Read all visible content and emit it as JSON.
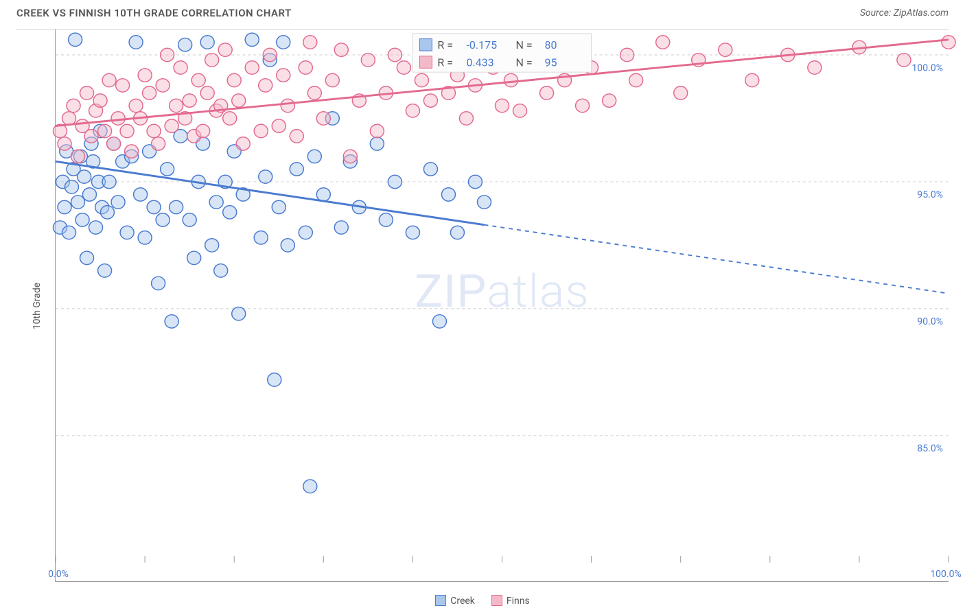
{
  "title": "CREEK VS FINNISH 10TH GRADE CORRELATION CHART",
  "source": "Source: ZipAtlas.com",
  "yaxis_label": "10th Grade",
  "watermark_a": "ZIP",
  "watermark_b": "atlas",
  "chart": {
    "type": "scatter",
    "background_color": "#ffffff",
    "grid_color": "#cccccc",
    "axis_color": "#999999",
    "label_color": "#4a7bd0",
    "xlim": [
      0,
      100
    ],
    "ylim": [
      80,
      101
    ],
    "ytick_step": 5,
    "ytick_labels": [
      "85.0%",
      "90.0%",
      "95.0%",
      "100.0%"
    ],
    "ytick_values": [
      85,
      90,
      95,
      100
    ],
    "xtick_values": [
      0,
      10,
      20,
      30,
      40,
      50,
      60,
      70,
      80,
      90,
      100
    ],
    "xtick_labels_shown": {
      "0": "0.0%",
      "100": "100.0%"
    },
    "marker_radius": 10,
    "marker_opacity": 0.45,
    "series": [
      {
        "name": "Creek",
        "fill": "#a9c6ec",
        "stroke": "#4a7bd0",
        "R": "-0.175",
        "N": "80",
        "trend": {
          "y_at_x0": 95.8,
          "y_at_x100": 90.6,
          "solid_until_x": 48
        },
        "points": [
          [
            0.5,
            93.2
          ],
          [
            0.8,
            95.0
          ],
          [
            1.0,
            94.0
          ],
          [
            1.2,
            96.2
          ],
          [
            1.5,
            93.0
          ],
          [
            1.8,
            94.8
          ],
          [
            2.0,
            95.5
          ],
          [
            2.2,
            100.6
          ],
          [
            2.5,
            94.2
          ],
          [
            2.8,
            96.0
          ],
          [
            3.0,
            93.5
          ],
          [
            3.2,
            95.2
          ],
          [
            3.5,
            92.0
          ],
          [
            3.8,
            94.5
          ],
          [
            4.0,
            96.5
          ],
          [
            4.2,
            95.8
          ],
          [
            4.5,
            93.2
          ],
          [
            4.8,
            95.0
          ],
          [
            5.0,
            97.0
          ],
          [
            5.2,
            94.0
          ],
          [
            5.5,
            91.5
          ],
          [
            5.8,
            93.8
          ],
          [
            6.0,
            95.0
          ],
          [
            6.5,
            96.5
          ],
          [
            7.0,
            94.2
          ],
          [
            7.5,
            95.8
          ],
          [
            8.0,
            93.0
          ],
          [
            8.5,
            96.0
          ],
          [
            9.0,
            100.5
          ],
          [
            9.5,
            94.5
          ],
          [
            10.0,
            92.8
          ],
          [
            10.5,
            96.2
          ],
          [
            11.0,
            94.0
          ],
          [
            11.5,
            91.0
          ],
          [
            12.0,
            93.5
          ],
          [
            12.5,
            95.5
          ],
          [
            13.0,
            89.5
          ],
          [
            13.5,
            94.0
          ],
          [
            14.0,
            96.8
          ],
          [
            14.5,
            100.4
          ],
          [
            15.0,
            93.5
          ],
          [
            15.5,
            92.0
          ],
          [
            16.0,
            95.0
          ],
          [
            16.5,
            96.5
          ],
          [
            17.0,
            100.5
          ],
          [
            17.5,
            92.5
          ],
          [
            18.0,
            94.2
          ],
          [
            18.5,
            91.5
          ],
          [
            19.0,
            95.0
          ],
          [
            19.5,
            93.8
          ],
          [
            20.0,
            96.2
          ],
          [
            20.5,
            89.8
          ],
          [
            21.0,
            94.5
          ],
          [
            22.0,
            100.6
          ],
          [
            23.0,
            92.8
          ],
          [
            23.5,
            95.2
          ],
          [
            24.0,
            99.8
          ],
          [
            24.5,
            87.2
          ],
          [
            25.0,
            94.0
          ],
          [
            25.5,
            100.5
          ],
          [
            26.0,
            92.5
          ],
          [
            27.0,
            95.5
          ],
          [
            28.0,
            93.0
          ],
          [
            28.5,
            83.0
          ],
          [
            29.0,
            96.0
          ],
          [
            30.0,
            94.5
          ],
          [
            31.0,
            97.5
          ],
          [
            32.0,
            93.2
          ],
          [
            33.0,
            95.8
          ],
          [
            34.0,
            94.0
          ],
          [
            36.0,
            96.5
          ],
          [
            37.0,
            93.5
          ],
          [
            38.0,
            95.0
          ],
          [
            40.0,
            93.0
          ],
          [
            42.0,
            95.5
          ],
          [
            43.0,
            89.5
          ],
          [
            44.0,
            94.5
          ],
          [
            45.0,
            93.0
          ],
          [
            47.0,
            95.0
          ],
          [
            48.0,
            94.2
          ]
        ]
      },
      {
        "name": "Finns",
        "fill": "#f4b9c9",
        "stroke": "#e36a8e",
        "R": "0.433",
        "N": "95",
        "trend": {
          "y_at_x0": 97.2,
          "y_at_x100": 100.6,
          "solid_until_x": 100
        },
        "points": [
          [
            0.5,
            97.0
          ],
          [
            1.0,
            96.5
          ],
          [
            1.5,
            97.5
          ],
          [
            2.0,
            98.0
          ],
          [
            2.5,
            96.0
          ],
          [
            3.0,
            97.2
          ],
          [
            3.5,
            98.5
          ],
          [
            4.0,
            96.8
          ],
          [
            4.5,
            97.8
          ],
          [
            5.0,
            98.2
          ],
          [
            5.5,
            97.0
          ],
          [
            6.0,
            99.0
          ],
          [
            6.5,
            96.5
          ],
          [
            7.0,
            97.5
          ],
          [
            7.5,
            98.8
          ],
          [
            8.0,
            97.0
          ],
          [
            8.5,
            96.2
          ],
          [
            9.0,
            98.0
          ],
          [
            9.5,
            97.5
          ],
          [
            10.0,
            99.2
          ],
          [
            10.5,
            98.5
          ],
          [
            11.0,
            97.0
          ],
          [
            11.5,
            96.5
          ],
          [
            12.0,
            98.8
          ],
          [
            12.5,
            100.0
          ],
          [
            13.0,
            97.2
          ],
          [
            13.5,
            98.0
          ],
          [
            14.0,
            99.5
          ],
          [
            14.5,
            97.5
          ],
          [
            15.0,
            98.2
          ],
          [
            15.5,
            96.8
          ],
          [
            16.0,
            99.0
          ],
          [
            16.5,
            97.0
          ],
          [
            17.0,
            98.5
          ],
          [
            17.5,
            99.8
          ],
          [
            18.0,
            97.8
          ],
          [
            18.5,
            98.0
          ],
          [
            19.0,
            100.2
          ],
          [
            19.5,
            97.5
          ],
          [
            20.0,
            99.0
          ],
          [
            20.5,
            98.2
          ],
          [
            21.0,
            96.5
          ],
          [
            22.0,
            99.5
          ],
          [
            23.0,
            97.0
          ],
          [
            23.5,
            98.8
          ],
          [
            24.0,
            100.0
          ],
          [
            25.0,
            97.2
          ],
          [
            25.5,
            99.2
          ],
          [
            26.0,
            98.0
          ],
          [
            27.0,
            96.8
          ],
          [
            28.0,
            99.5
          ],
          [
            28.5,
            100.5
          ],
          [
            29.0,
            98.5
          ],
          [
            30.0,
            97.5
          ],
          [
            31.0,
            99.0
          ],
          [
            32.0,
            100.2
          ],
          [
            33.0,
            96.0
          ],
          [
            34.0,
            98.2
          ],
          [
            35.0,
            99.8
          ],
          [
            36.0,
            97.0
          ],
          [
            37.0,
            98.5
          ],
          [
            38.0,
            100.0
          ],
          [
            39.0,
            99.5
          ],
          [
            40.0,
            97.8
          ],
          [
            41.0,
            99.0
          ],
          [
            42.0,
            98.2
          ],
          [
            43.0,
            100.5
          ],
          [
            44.0,
            98.5
          ],
          [
            45.0,
            99.2
          ],
          [
            46.0,
            97.5
          ],
          [
            47.0,
            98.8
          ],
          [
            48.0,
            100.0
          ],
          [
            49.0,
            99.5
          ],
          [
            50.0,
            98.0
          ],
          [
            51.0,
            99.0
          ],
          [
            52.0,
            97.8
          ],
          [
            54.0,
            100.2
          ],
          [
            55.0,
            98.5
          ],
          [
            57.0,
            99.0
          ],
          [
            58.0,
            100.5
          ],
          [
            59.0,
            98.0
          ],
          [
            60.0,
            99.5
          ],
          [
            62.0,
            98.2
          ],
          [
            64.0,
            100.0
          ],
          [
            65.0,
            99.0
          ],
          [
            68.0,
            100.5
          ],
          [
            70.0,
            98.5
          ],
          [
            72.0,
            99.8
          ],
          [
            75.0,
            100.2
          ],
          [
            78.0,
            99.0
          ],
          [
            82.0,
            100.0
          ],
          [
            85.0,
            99.5
          ],
          [
            90.0,
            100.3
          ],
          [
            95.0,
            99.8
          ],
          [
            100.0,
            100.5
          ]
        ]
      }
    ]
  },
  "bottom_legend": [
    {
      "label": "Creek",
      "fill": "#a9c6ec",
      "stroke": "#4a7bd0"
    },
    {
      "label": "Finns",
      "fill": "#f4b9c9",
      "stroke": "#e36a8e"
    }
  ]
}
